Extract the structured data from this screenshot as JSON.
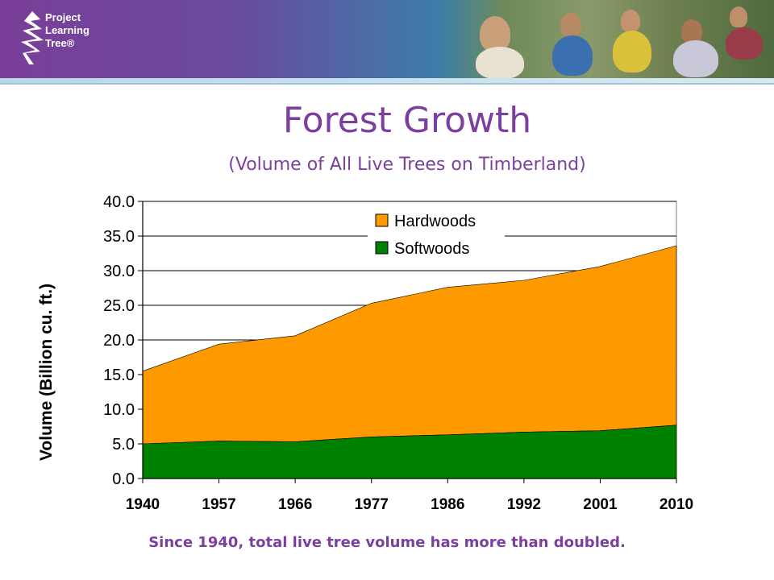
{
  "brand": {
    "logo_lines": [
      "Project",
      "Learning",
      "Tree®"
    ]
  },
  "slide": {
    "title": "Forest Growth",
    "subtitle": "(Volume of All Live Trees on Timberland)",
    "footnote": "Since 1940, total live tree volume has more than doubled."
  },
  "colors": {
    "hardwoods": "#ff9900",
    "softwoods": "#008000",
    "title": "#7b3fa0"
  },
  "chart_data": {
    "type": "area",
    "stacked": true,
    "title": "",
    "xlabel": "",
    "ylabel": "Volume (Billion cu. ft.)",
    "ylim": [
      0,
      40
    ],
    "yticks": [
      "0.0",
      "5.0",
      "10.0",
      "15.0",
      "20.0",
      "25.0",
      "30.0",
      "35.0",
      "40.0"
    ],
    "categories": [
      "1940",
      "1957",
      "1966",
      "1977",
      "1986",
      "1992",
      "2001",
      "2010"
    ],
    "series": [
      {
        "name": "Softwoods",
        "values": [
          5.0,
          5.4,
          5.3,
          6.0,
          6.3,
          6.7,
          6.9,
          7.7
        ]
      },
      {
        "name": "Hardwoods",
        "values": [
          10.5,
          14.0,
          15.3,
          19.3,
          21.3,
          21.9,
          23.7,
          25.9
        ]
      }
    ],
    "legend": {
      "position": "top-center",
      "entries": [
        "Hardwoods",
        "Softwoods"
      ]
    },
    "grid": true
  }
}
